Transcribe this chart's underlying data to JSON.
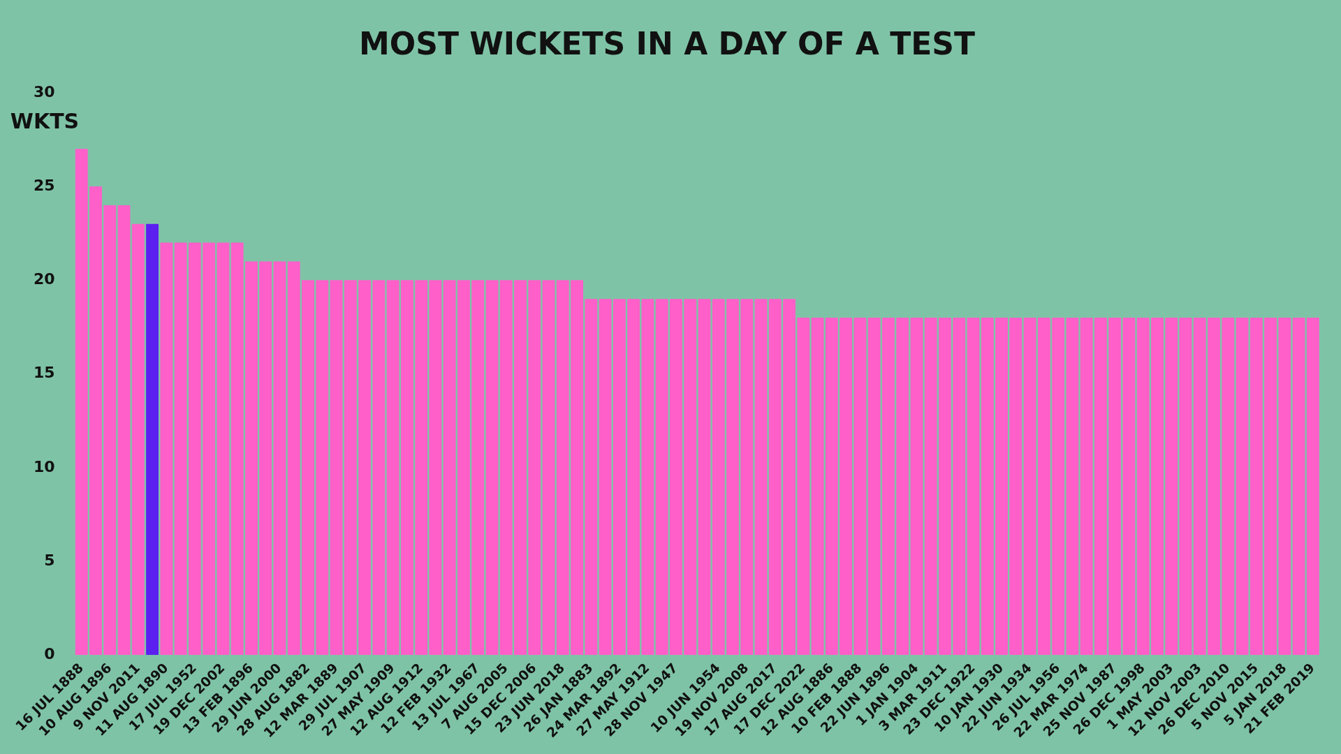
{
  "chart_data": {
    "type": "bar",
    "title": "MOST WICKETS IN A DAY OF A TEST",
    "ylabel": "WKTS",
    "categories": [
      "16 JUL 1888",
      null,
      "10 AUG 1896",
      null,
      "9 NOV 2011",
      null,
      "11 AUG 1890",
      null,
      "17 JUL 1952",
      null,
      "19 DEC 2002",
      null,
      "13 FEB 1896",
      null,
      "29 JUN 2000",
      null,
      "28 AUG 1882",
      null,
      "12 MAR 1889",
      null,
      "29 JUL 1907",
      null,
      "27 MAY 1909",
      null,
      "12 AUG 1912",
      null,
      "12 FEB 1932",
      null,
      "13 JUL 1967",
      null,
      "7 AUG 2005",
      null,
      "15 DEC 2006",
      null,
      "23 JUN 2018",
      null,
      "26 JAN 1883",
      null,
      "24 MAR 1892",
      null,
      "27 MAY 1912",
      null,
      "28 NOV 1947",
      null,
      null,
      "10 JUN 1954",
      null,
      "19 NOV 2008",
      null,
      "17 AUG 2017",
      null,
      "17 DEC 2022",
      null,
      "12 AUG 1886",
      null,
      "10 FEB 1888",
      null,
      "22 JUN 1896",
      null,
      "1 JAN 1904",
      null,
      "3 MAR 1911",
      null,
      "23 DEC 1922",
      null,
      "10 JAN 1930",
      null,
      "22 JUN 1934",
      null,
      "26 JUL 1956",
      null,
      "22 MAR 1974",
      null,
      "25 NOV 1987",
      null,
      "26 DEC 1998",
      null,
      "1 MAY 2003",
      null,
      "12 NOV 2003",
      null,
      "26 DEC 2010",
      null,
      "5 NOV 2015",
      null,
      "5 JAN 2018",
      null,
      "21 FEB 2019"
    ],
    "values": [
      27,
      25,
      24,
      24,
      23,
      23,
      22,
      22,
      22,
      22,
      22,
      22,
      21,
      21,
      21,
      21,
      20,
      20,
      20,
      20,
      20,
      20,
      20,
      20,
      20,
      20,
      20,
      20,
      20,
      20,
      20,
      20,
      20,
      20,
      20,
      20,
      19,
      19,
      19,
      19,
      19,
      19,
      19,
      19,
      19,
      19,
      19,
      19,
      19,
      19,
      19,
      18,
      18,
      18,
      18,
      18,
      18,
      18,
      18,
      18,
      18,
      18,
      18,
      18,
      18,
      18,
      18,
      18,
      18,
      18,
      18,
      18,
      18,
      18,
      18,
      18,
      18,
      18,
      18,
      18,
      18,
      18,
      18,
      18,
      18,
      18,
      18,
      18
    ],
    "colors": [
      "#ff5fc8",
      "#ff5fc8",
      "#ff5fc8",
      "#ff5fc8",
      "#ff5fc8",
      "#5b1ff0",
      "#ff5fc8",
      "#ff5fc8",
      "#ff5fc8",
      "#ff5fc8",
      "#ff5fc8",
      "#ff5fc8",
      "#ff5fc8",
      "#ff5fc8",
      "#ff5fc8",
      "#ff5fc8",
      "#ff5fc8",
      "#ff5fc8",
      "#ff5fc8",
      "#ff5fc8",
      "#ff5fc8",
      "#ff5fc8",
      "#ff5fc8",
      "#ff5fc8",
      "#ff5fc8",
      "#ff5fc8",
      "#ff5fc8",
      "#ff5fc8",
      "#ff5fc8",
      "#ff5fc8",
      "#ff5fc8",
      "#ff5fc8",
      "#ff5fc8",
      "#ff5fc8",
      "#ff5fc8",
      "#ff5fc8",
      "#ff5fc8",
      "#ff5fc8",
      "#ff5fc8",
      "#ff5fc8",
      "#ff5fc8",
      "#ff5fc8",
      "#ff5fc8",
      "#ff5fc8",
      "#ff5fc8",
      "#ff5fc8",
      "#ff5fc8",
      "#ff5fc8",
      "#ff5fc8",
      "#ff5fc8",
      "#ff5fc8",
      "#ff5fc8",
      "#ff5fc8",
      "#ff5fc8",
      "#ff5fc8",
      "#ff5fc8",
      "#ff5fc8",
      "#ff5fc8",
      "#ff5fc8",
      "#ff5fc8",
      "#ff5fc8",
      "#ff5fc8",
      "#ff5fc8",
      "#ff5fc8",
      "#ff5fc8",
      "#ff5fc8",
      "#ff5fc8",
      "#ff5fc8",
      "#ff5fc8",
      "#ff5fc8",
      "#ff5fc8",
      "#ff5fc8",
      "#ff5fc8",
      "#ff5fc8",
      "#ff5fc8",
      "#ff5fc8",
      "#ff5fc8",
      "#ff5fc8",
      "#ff5fc8",
      "#ff5fc8",
      "#ff5fc8",
      "#ff5fc8",
      "#ff5fc8",
      "#ff5fc8",
      "#ff5fc8",
      "#ff5fc8",
      "#ff5fc8",
      "#ff5fc8"
    ],
    "ylim": [
      0,
      30
    ],
    "yticks": [
      0,
      5,
      10,
      15,
      20,
      25,
      30
    ],
    "grid": false,
    "legend": false
  }
}
